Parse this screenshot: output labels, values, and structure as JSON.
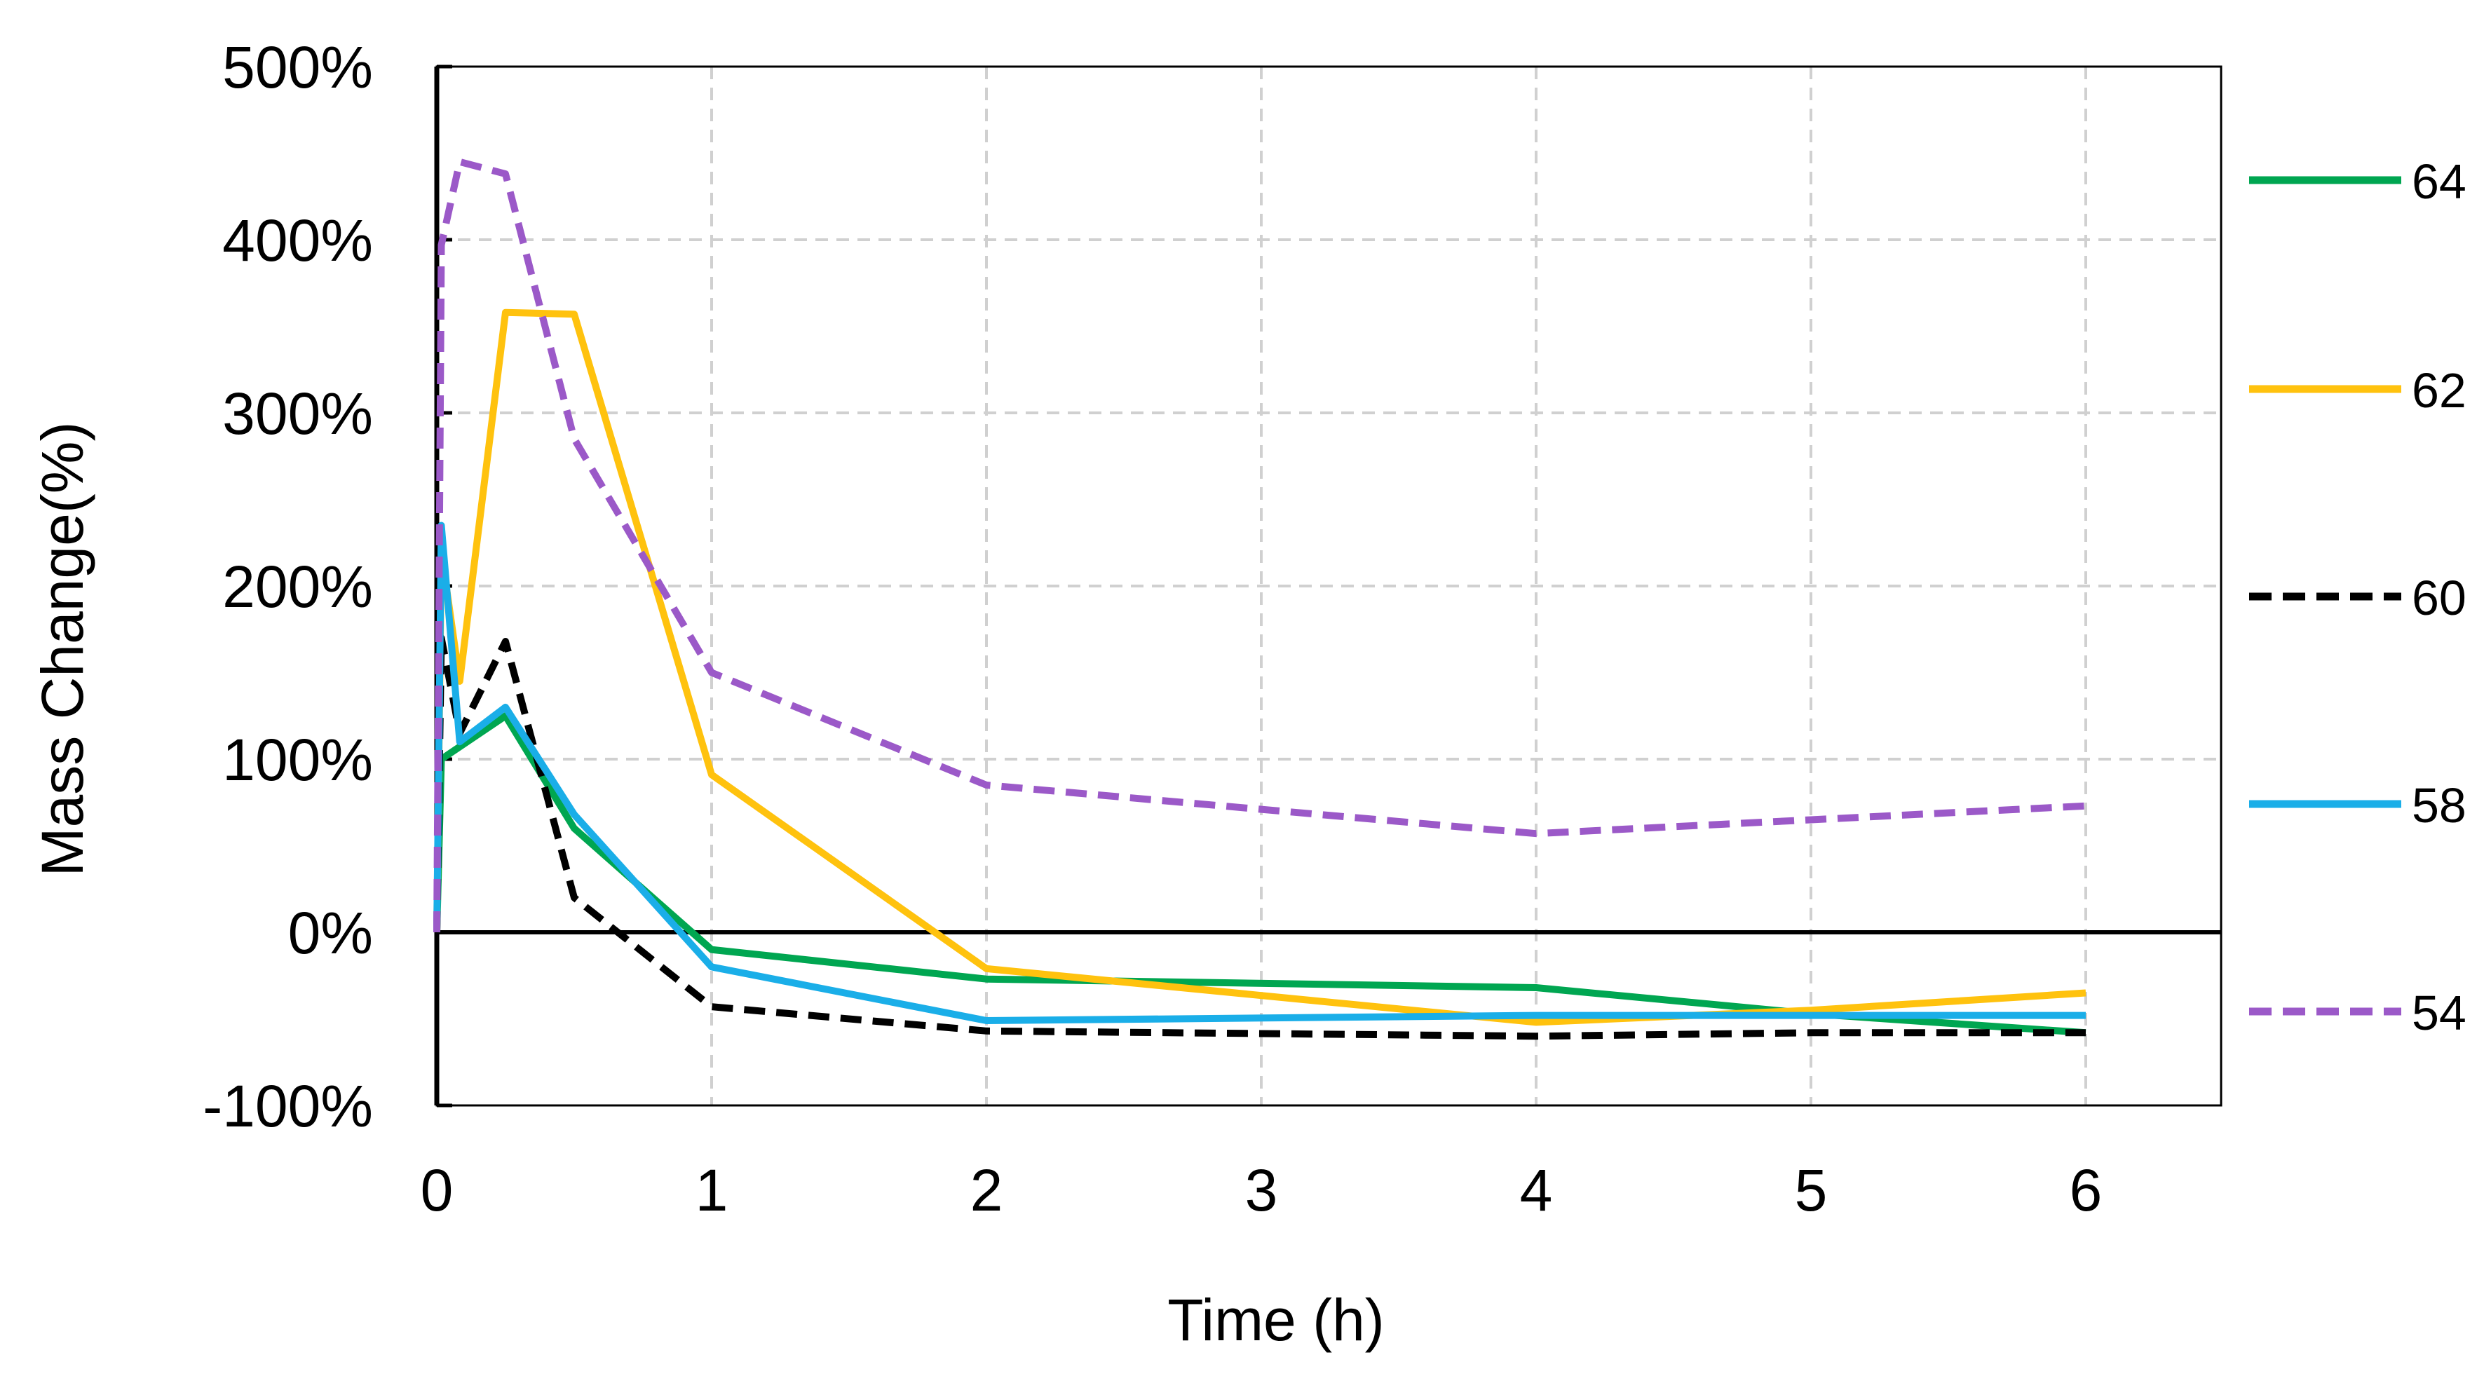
{
  "chart_data": {
    "type": "line",
    "xlabel": "Time (h)",
    "ylabel": "Mass Change(%)",
    "xlim": [
      0,
      6.5
    ],
    "ylim": [
      -100,
      500
    ],
    "x_ticks": [
      0,
      1,
      2,
      3,
      4,
      5,
      6
    ],
    "x_tick_labels": [
      "0",
      "1",
      "2",
      "3",
      "4",
      "5",
      "6"
    ],
    "y_ticks": [
      -100,
      0,
      100,
      200,
      300,
      400,
      500
    ],
    "y_tick_labels": [
      "-100%",
      "0%",
      "100%",
      "200%",
      "300%",
      "400%",
      "500%"
    ],
    "grid": true,
    "legend_position": "right",
    "series": [
      {
        "name": "64",
        "color": "#00a651",
        "style": "solid",
        "x": [
          0,
          0.0167,
          0.25,
          0.5,
          1,
          2,
          4,
          5,
          6
        ],
        "y": [
          0,
          100,
          125,
          60,
          -10,
          -27,
          -32,
          -47,
          -58
        ]
      },
      {
        "name": "62",
        "color": "#ffc20e",
        "style": "solid",
        "x": [
          0,
          0.0167,
          0.0833,
          0.25,
          0.5,
          1,
          2,
          4,
          5,
          6
        ],
        "y": [
          0,
          220,
          145,
          358,
          357,
          91,
          -21,
          -52,
          -45,
          -35
        ]
      },
      {
        "name": "60",
        "color": "#000000",
        "style": "dashed",
        "x": [
          0,
          0.0167,
          0.0833,
          0.25,
          0.5,
          1,
          2,
          4,
          5,
          6
        ],
        "y": [
          0,
          170,
          115,
          168,
          20,
          -43,
          -57,
          -60,
          -58,
          -58
        ]
      },
      {
        "name": "58",
        "color": "#1aaee8",
        "style": "solid",
        "x": [
          0,
          0.0167,
          0.0833,
          0.25,
          0.5,
          1,
          2,
          4,
          5,
          6
        ],
        "y": [
          0,
          235,
          110,
          130,
          68,
          -20,
          -51,
          -48,
          -48,
          -48
        ]
      },
      {
        "name": "54",
        "color": "#9b59c8",
        "style": "dashed",
        "x": [
          0,
          0.0167,
          0.0833,
          0.25,
          0.5,
          1,
          2,
          3,
          4,
          5,
          6
        ],
        "y": [
          0,
          397,
          445,
          438,
          285,
          150,
          85,
          71,
          57,
          65,
          73
        ]
      }
    ]
  }
}
